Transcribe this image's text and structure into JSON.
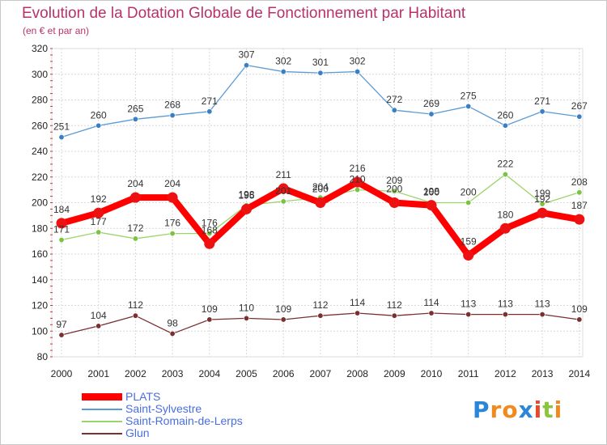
{
  "title": "Evolution de la Dotation Globale de Fonctionnement par Habitant",
  "subtitle": "(en € et par an)",
  "logo": {
    "text": "Proxiti",
    "letter_colors": [
      "#2c86d8",
      "#f08a1c",
      "#f08a1c",
      "#2c86d8",
      "#e84a2c",
      "#8bc53f",
      "#f08a1c"
    ]
  },
  "chart_data": {
    "type": "line",
    "x": [
      2000,
      2001,
      2002,
      2003,
      2004,
      2005,
      2006,
      2007,
      2008,
      2009,
      2010,
      2011,
      2012,
      2013,
      2014
    ],
    "ylim": [
      80,
      320
    ],
    "yticks": [
      80,
      100,
      120,
      140,
      160,
      180,
      200,
      220,
      240,
      260,
      280,
      300,
      320
    ],
    "grid": true,
    "legend_position": "bottom-left",
    "series": [
      {
        "name": "Saint-Sylvestre",
        "color": "#5b9bd5",
        "marker_color": "#3a7fc4",
        "values": [
          251,
          260,
          265,
          268,
          271,
          307,
          302,
          301,
          302,
          272,
          269,
          275,
          260,
          271,
          267
        ]
      },
      {
        "name": "Saint-Romain-de-Lerps",
        "color": "#9bd46a",
        "marker_color": "#7cc243",
        "values": [
          171,
          177,
          172,
          176,
          176,
          198,
          201,
          204,
          210,
          209,
          200,
          200,
          222,
          199,
          208
        ]
      },
      {
        "name": "Glun",
        "color": "#7a3030",
        "marker_color": "#7a3030",
        "values": [
          97,
          104,
          112,
          98,
          109,
          110,
          109,
          112,
          114,
          112,
          114,
          113,
          113,
          113,
          109
        ]
      },
      {
        "name": "PLATS",
        "color": "#ff0000",
        "marker_color": "#ee1111",
        "values": [
          184,
          192,
          204,
          204,
          168,
          195,
          211,
          200,
          216,
          200,
          198,
          159,
          180,
          192,
          187
        ]
      }
    ],
    "legend_order": [
      "PLATS",
      "Saint-Sylvestre",
      "Saint-Romain-de-Lerps",
      "Glun"
    ]
  }
}
